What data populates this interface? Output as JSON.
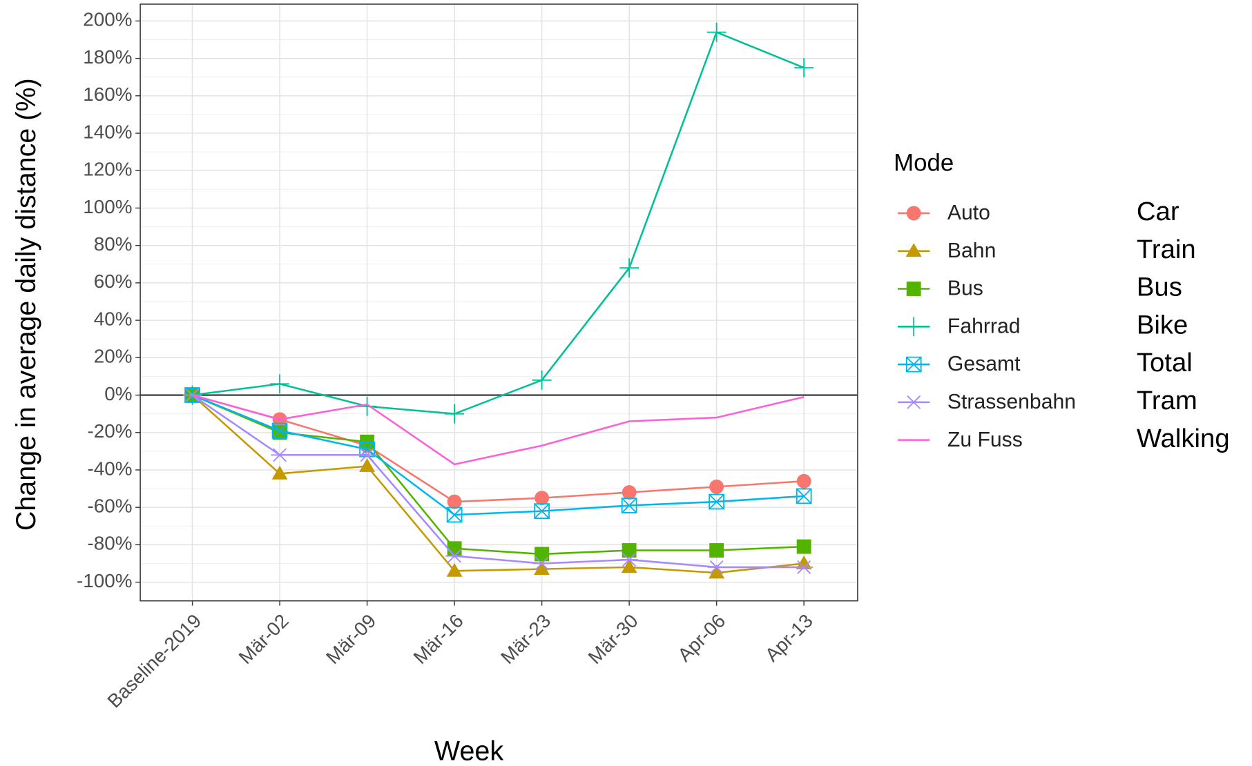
{
  "chart_data": {
    "type": "line",
    "x_label": "Week",
    "y_label": "Change in average daily distance (%)",
    "categories": [
      "Baseline-2019",
      "Mär-02",
      "Mär-09",
      "Mär-16",
      "Mär-23",
      "Mär-30",
      "Apr-06",
      "Apr-13"
    ],
    "ylim": [
      -110,
      209
    ],
    "yticks": [
      {
        "value": -100,
        "label": "-100%"
      },
      {
        "value": -80,
        "label": "-80%"
      },
      {
        "value": -60,
        "label": "-60%"
      },
      {
        "value": -40,
        "label": "-40%"
      },
      {
        "value": -20,
        "label": "-20%"
      },
      {
        "value": 0,
        "label": "0%"
      },
      {
        "value": 20,
        "label": "20%"
      },
      {
        "value": 40,
        "label": "40%"
      },
      {
        "value": 60,
        "label": "60%"
      },
      {
        "value": 80,
        "label": "80%"
      },
      {
        "value": 100,
        "label": "100%"
      },
      {
        "value": 120,
        "label": "120%"
      },
      {
        "value": 140,
        "label": "140%"
      },
      {
        "value": 160,
        "label": "160%"
      },
      {
        "value": 180,
        "label": "180%"
      },
      {
        "value": 200,
        "label": "200%"
      }
    ],
    "minor_yticks": [
      -90,
      -70,
      -50,
      -30,
      -10,
      10,
      30,
      50,
      70,
      90,
      110,
      130,
      150,
      170,
      190
    ],
    "grid": true,
    "hline": 0,
    "legend_title": "Mode",
    "legend_position": "right",
    "legend_translations": [
      "Car",
      "Train",
      "Bus",
      "Bike",
      "Total",
      "Tram",
      "Walking"
    ],
    "series": [
      {
        "name": "Auto",
        "color": "#F8766D",
        "marker": "circle",
        "values": [
          0,
          -13,
          -27,
          -57,
          -55,
          -52,
          -49,
          -46
        ]
      },
      {
        "name": "Bahn",
        "color": "#C49A00",
        "marker": "triangle",
        "values": [
          0,
          -42,
          -38,
          -94,
          -93,
          -92,
          -95,
          -90
        ]
      },
      {
        "name": "Bus",
        "color": "#53B400",
        "marker": "square",
        "values": [
          0,
          -20,
          -25,
          -82,
          -85,
          -83,
          -83,
          -81
        ]
      },
      {
        "name": "Fahrrad",
        "color": "#00C094",
        "marker": "plus",
        "values": [
          0,
          6,
          -6,
          -10,
          8,
          68,
          194,
          175
        ]
      },
      {
        "name": "Gesamt",
        "color": "#00B6EB",
        "marker": "boxx",
        "values": [
          0,
          -19,
          -29,
          -64,
          -62,
          -59,
          -57,
          -54
        ]
      },
      {
        "name": "Strassenbahn",
        "color": "#A58AFF",
        "marker": "asterisk",
        "values": [
          0,
          -32,
          -32,
          -86,
          -90,
          -88,
          -92,
          -92
        ]
      },
      {
        "name": "Zu Fuss",
        "color": "#FB61D7",
        "marker": "none",
        "values": [
          0,
          -13,
          -5,
          -37,
          -27,
          -14,
          -12,
          -1
        ]
      }
    ]
  }
}
